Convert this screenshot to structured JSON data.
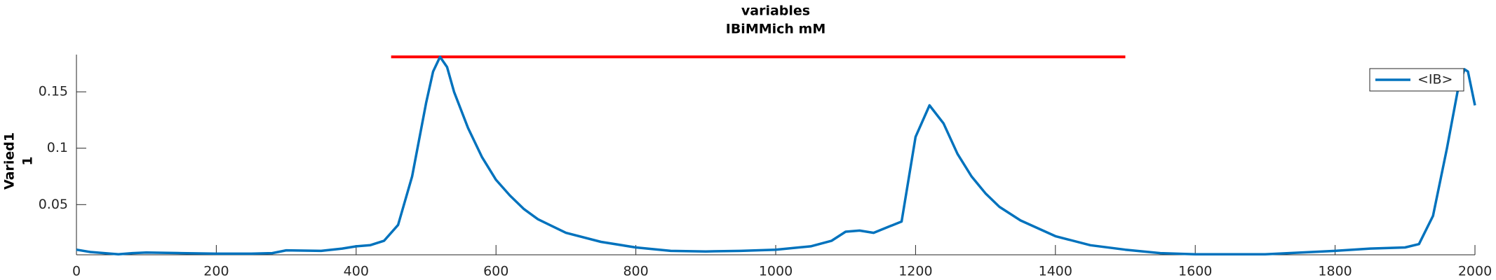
{
  "chart_data": {
    "type": "line",
    "title": [
      "variables",
      "IBiMMich mM"
    ],
    "ylabel": [
      "Varied1",
      "1"
    ],
    "x": [
      0,
      20,
      40,
      60,
      80,
      100,
      150,
      200,
      250,
      280,
      300,
      350,
      380,
      400,
      420,
      440,
      460,
      480,
      500,
      510,
      520,
      530,
      540,
      560,
      580,
      600,
      620,
      640,
      660,
      680,
      700,
      750,
      800,
      850,
      900,
      950,
      1000,
      1050,
      1080,
      1100,
      1120,
      1140,
      1160,
      1180,
      1200,
      1220,
      1240,
      1260,
      1280,
      1300,
      1320,
      1350,
      1400,
      1450,
      1500,
      1550,
      1600,
      1700,
      1800,
      1850,
      1900,
      1920,
      1940,
      1960,
      1975,
      1985,
      1990,
      2000
    ],
    "series": [
      {
        "name": "<IB>",
        "color": "#0072bd",
        "values": [
          0.01,
          0.008,
          0.007,
          0.006,
          0.007,
          0.0075,
          0.007,
          0.0065,
          0.0065,
          0.007,
          0.0095,
          0.009,
          0.011,
          0.013,
          0.014,
          0.018,
          0.032,
          0.075,
          0.14,
          0.168,
          0.181,
          0.172,
          0.15,
          0.118,
          0.092,
          0.072,
          0.058,
          0.046,
          0.037,
          0.031,
          0.025,
          0.017,
          0.012,
          0.009,
          0.0085,
          0.009,
          0.01,
          0.013,
          0.018,
          0.026,
          0.027,
          0.025,
          0.03,
          0.035,
          0.11,
          0.138,
          0.122,
          0.095,
          0.075,
          0.06,
          0.048,
          0.036,
          0.022,
          0.014,
          0.01,
          0.007,
          0.006,
          0.006,
          0.009,
          0.011,
          0.012,
          0.015,
          0.04,
          0.1,
          0.15,
          0.17,
          0.168,
          0.138
        ]
      }
    ],
    "hlines": [
      {
        "xmin": 450,
        "xmax": 1500,
        "y": 0.181,
        "color": "#ff0000"
      }
    ],
    "xlim": [
      0,
      2000
    ],
    "xticks": [
      0,
      200,
      400,
      600,
      800,
      1000,
      1200,
      1400,
      1600,
      1800,
      2000
    ],
    "ylim": [
      0.0055,
      0.183
    ],
    "yticks": [
      0.05,
      0.1,
      0.15
    ],
    "legend": "northeast"
  }
}
